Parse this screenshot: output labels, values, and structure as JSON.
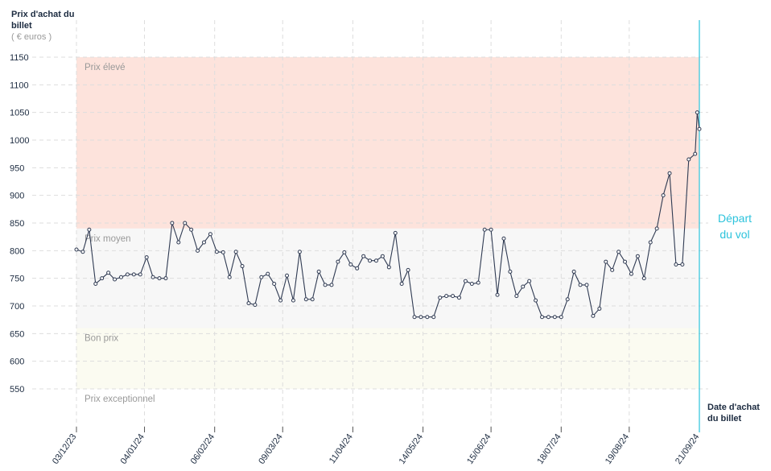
{
  "chart_data": {
    "type": "line",
    "y_axis_title": "Prix d'achat du billet",
    "y_axis_unit": "( € euros )",
    "x_axis_title": "Date d'achat du billet",
    "departure": {
      "date": "2024-09-21",
      "label": "Départ du vol",
      "color": "#2cc3dc"
    },
    "bands": [
      {
        "label": "Prix élevé",
        "from": 840,
        "to": 1150,
        "color": "#fde3dc"
      },
      {
        "label": "Prix moyen",
        "from": 660,
        "to": 840,
        "color": "#f7f7f7"
      },
      {
        "label": "Bon prix",
        "from": 550,
        "to": 660,
        "color": "#fbfbf1"
      },
      {
        "label": "Prix exceptionnel",
        "from": 500,
        "to": 550,
        "color": "#ffffff"
      }
    ],
    "xlim": [
      "2023-12-03",
      "2024-09-21"
    ],
    "xticks": [
      {
        "value": "2023-12-03",
        "label": "03/12/23"
      },
      {
        "value": "2024-01-04",
        "label": "04/01/24"
      },
      {
        "value": "2024-02-06",
        "label": "06/02/24"
      },
      {
        "value": "2024-03-09",
        "label": "09/03/24"
      },
      {
        "value": "2024-04-11",
        "label": "11/04/24"
      },
      {
        "value": "2024-05-14",
        "label": "14/05/24"
      },
      {
        "value": "2024-06-15",
        "label": "15/06/24"
      },
      {
        "value": "2024-07-18",
        "label": "18/07/24"
      },
      {
        "value": "2024-08-19",
        "label": "19/08/24"
      },
      {
        "value": "2024-09-21",
        "label": "21/09/24"
      }
    ],
    "ylim": [
      550,
      1150
    ],
    "yticks": [
      550,
      600,
      650,
      700,
      750,
      800,
      850,
      900,
      950,
      1000,
      1050,
      1100,
      1150
    ],
    "grid": true,
    "x": [
      "2023-12-03",
      "2023-12-06",
      "2023-12-09",
      "2023-12-12",
      "2023-12-15",
      "2023-12-18",
      "2023-12-21",
      "2023-12-24",
      "2023-12-27",
      "2023-12-30",
      "2024-01-02",
      "2024-01-05",
      "2024-01-08",
      "2024-01-11",
      "2024-01-14",
      "2024-01-17",
      "2024-01-20",
      "2024-01-23",
      "2024-01-26",
      "2024-01-29",
      "2024-02-01",
      "2024-02-04",
      "2024-02-07",
      "2024-02-10",
      "2024-02-13",
      "2024-02-16",
      "2024-02-19",
      "2024-02-22",
      "2024-02-25",
      "2024-02-28",
      "2024-03-02",
      "2024-03-05",
      "2024-03-08",
      "2024-03-11",
      "2024-03-14",
      "2024-03-17",
      "2024-03-20",
      "2024-03-23",
      "2024-03-26",
      "2024-03-29",
      "2024-04-01",
      "2024-04-04",
      "2024-04-07",
      "2024-04-10",
      "2024-04-13",
      "2024-04-16",
      "2024-04-19",
      "2024-04-22",
      "2024-04-25",
      "2024-04-28",
      "2024-05-01",
      "2024-05-04",
      "2024-05-07",
      "2024-05-10",
      "2024-05-13",
      "2024-05-16",
      "2024-05-19",
      "2024-05-22",
      "2024-05-25",
      "2024-05-28",
      "2024-05-31",
      "2024-06-03",
      "2024-06-06",
      "2024-06-09",
      "2024-06-12",
      "2024-06-15",
      "2024-06-18",
      "2024-06-21",
      "2024-06-24",
      "2024-06-27",
      "2024-06-30",
      "2024-07-03",
      "2024-07-06",
      "2024-07-09",
      "2024-07-12",
      "2024-07-15",
      "2024-07-18",
      "2024-07-21",
      "2024-07-24",
      "2024-07-27",
      "2024-07-30",
      "2024-08-02",
      "2024-08-05",
      "2024-08-08",
      "2024-08-11",
      "2024-08-14",
      "2024-08-17",
      "2024-08-20",
      "2024-08-23",
      "2024-08-26",
      "2024-08-29",
      "2024-09-01",
      "2024-09-04",
      "2024-09-07",
      "2024-09-10",
      "2024-09-13",
      "2024-09-16",
      "2024-09-19",
      "2024-09-20",
      "2024-09-21"
    ],
    "series": [
      {
        "name": "Prix",
        "color": "#2f3a52",
        "values": [
          802,
          798,
          838,
          740,
          750,
          760,
          748,
          752,
          757,
          757,
          757,
          788,
          752,
          750,
          750,
          850,
          815,
          850,
          838,
          800,
          815,
          830,
          798,
          797,
          752,
          798,
          772,
          705,
          702,
          752,
          758,
          740,
          710,
          755,
          710,
          798,
          712,
          712,
          762,
          738,
          738,
          780,
          797,
          775,
          768,
          790,
          782,
          782,
          790,
          770,
          832,
          740,
          765,
          680,
          680,
          680,
          680,
          715,
          718,
          718,
          715,
          745,
          740,
          742,
          838,
          838,
          720,
          822,
          762,
          718,
          735,
          745,
          710,
          680,
          680,
          680,
          680,
          712,
          762,
          738,
          738,
          682,
          695,
          780,
          765,
          798,
          780,
          758,
          790,
          750,
          815,
          840,
          900,
          940,
          775,
          775,
          965,
          975,
          1050,
          1020
        ]
      }
    ]
  }
}
